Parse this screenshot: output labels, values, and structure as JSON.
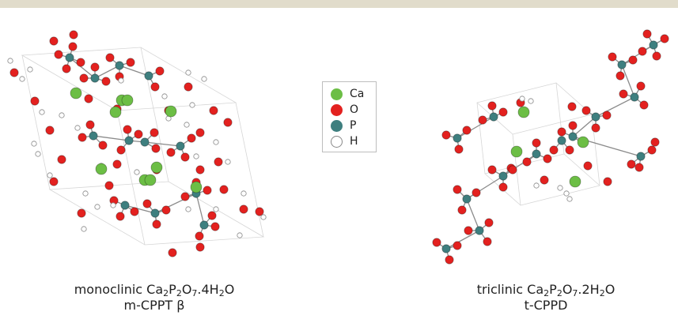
{
  "legend": {
    "items": [
      {
        "label": "Ca",
        "color": "#6cbe45"
      },
      {
        "label": "O",
        "color": "#e3211f"
      },
      {
        "label": "P",
        "color": "#3e7f7f"
      },
      {
        "label": "H",
        "color": "#ffffff"
      }
    ]
  },
  "captions": {
    "left": {
      "line1_prefix": "monoclinic",
      "formula": [
        "Ca",
        "2",
        "P",
        "2",
        "O",
        "7",
        ".4H",
        "2",
        "O"
      ],
      "line2": "m-CPPT β"
    },
    "right": {
      "line1_prefix": "triclinic",
      "formula": [
        "Ca",
        "2",
        "P",
        "2",
        "O",
        "7",
        ".2H",
        "2",
        "O"
      ],
      "line2": "t-CPPD"
    }
  },
  "colors": {
    "ca": "#6cbe45",
    "o": "#e3211f",
    "p": "#3e7f7f",
    "h": "#ffffff",
    "bond": "#8a8a8a",
    "cell": "#cfcfcf"
  }
}
